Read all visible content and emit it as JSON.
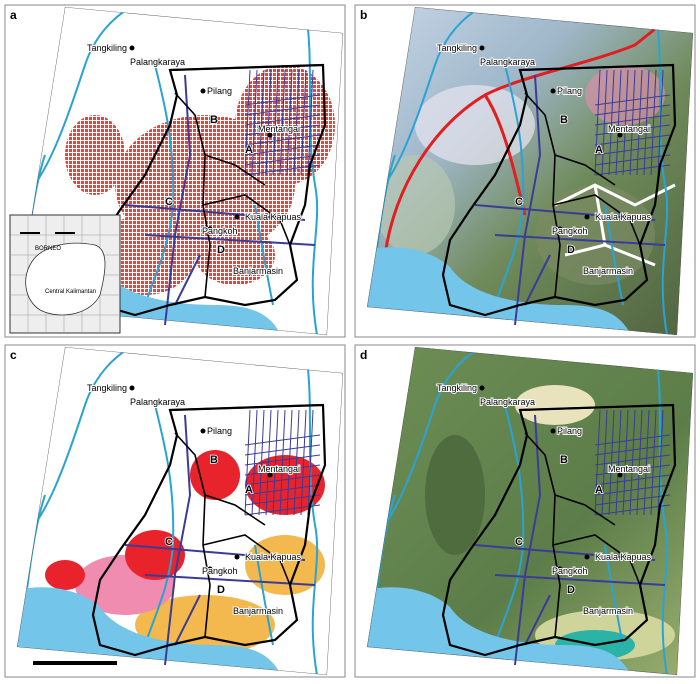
{
  "panels": [
    {
      "label": "a"
    },
    {
      "label": "b"
    },
    {
      "label": "c"
    },
    {
      "label": "d"
    }
  ],
  "places": [
    {
      "name": "Tangkiling"
    },
    {
      "name": "Palangkaraya"
    },
    {
      "name": "Pilang"
    },
    {
      "name": "Mentangai"
    },
    {
      "name": "Kuala Kapuas"
    },
    {
      "name": "Pangkoh"
    },
    {
      "name": "Banjarmasin"
    }
  ],
  "blocks": [
    "A",
    "B",
    "C",
    "D"
  ],
  "inset": {
    "island": "BORNEO",
    "province": "Central Kalimantan"
  }
}
